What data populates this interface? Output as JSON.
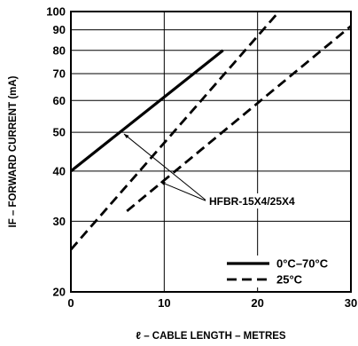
{
  "chart_data": {
    "type": "line",
    "xlabel": "ℓ – CABLE LENGTH – METRES",
    "ylabel": "IF – FORWARD CURRENT (mA)",
    "x_ticks": [
      0,
      10,
      20,
      30
    ],
    "y_ticks": [
      20,
      30,
      40,
      50,
      60,
      70,
      80,
      90,
      100
    ],
    "xlim": [
      0,
      30
    ],
    "ylim": [
      20,
      100
    ],
    "y_scale": "log",
    "grid": true,
    "legend_position": "bottom-right",
    "annotation": "HFBR-15X4/25X4",
    "series": [
      {
        "name": "0°C–70°C",
        "style": "solid",
        "x": [
          0,
          16.3
        ],
        "y": [
          40,
          80
        ]
      },
      {
        "name": "25°C",
        "style": "dashed",
        "x": [
          0,
          22.3
        ],
        "y": [
          25.5,
          100
        ]
      },
      {
        "name": "",
        "style": "dashed",
        "x": [
          6,
          30
        ],
        "y": [
          31.8,
          92
        ]
      }
    ]
  }
}
